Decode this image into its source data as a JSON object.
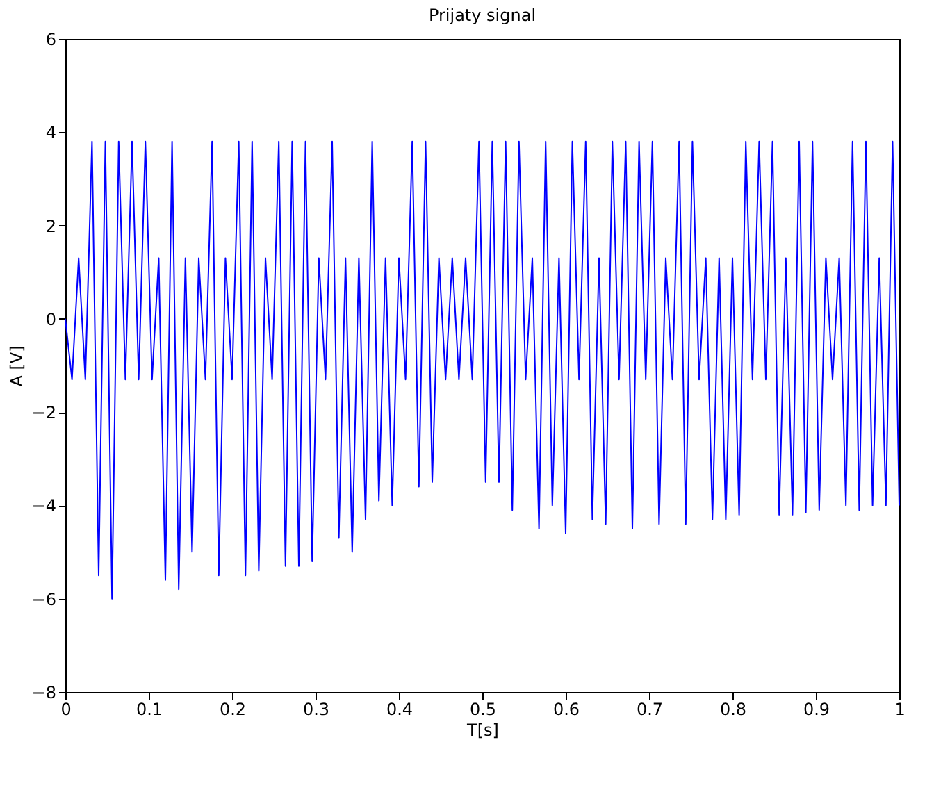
{
  "chart_data": {
    "type": "line",
    "title": "Prijaty signal",
    "xlabel": "T[s]",
    "ylabel": "A [V]",
    "x": [
      0,
      0.008,
      0.016,
      0.024,
      0.032,
      0.04,
      0.048,
      0.056,
      0.064,
      0.072,
      0.08,
      0.088,
      0.096,
      0.104,
      0.112,
      0.12,
      0.128,
      0.136,
      0.144,
      0.152,
      0.16,
      0.168,
      0.176,
      0.184,
      0.192,
      0.2,
      0.208,
      0.216,
      0.224,
      0.232,
      0.24,
      0.248,
      0.256,
      0.264,
      0.272,
      0.28,
      0.288,
      0.296,
      0.304,
      0.312,
      0.32,
      0.328,
      0.336,
      0.344,
      0.352,
      0.36,
      0.368,
      0.376,
      0.384,
      0.392,
      0.4,
      0.408,
      0.416,
      0.424,
      0.432,
      0.44,
      0.448,
      0.456,
      0.464,
      0.472,
      0.48,
      0.488,
      0.496,
      0.504,
      0.512,
      0.52,
      0.528,
      0.536,
      0.544,
      0.552,
      0.56,
      0.568,
      0.576,
      0.584,
      0.592,
      0.6,
      0.608,
      0.616,
      0.624,
      0.632,
      0.64,
      0.648,
      0.656,
      0.664,
      0.672,
      0.68,
      0.688,
      0.696,
      0.704,
      0.712,
      0.72,
      0.728,
      0.736,
      0.744,
      0.752,
      0.76,
      0.768,
      0.776,
      0.784,
      0.792,
      0.8,
      0.808,
      0.816,
      0.824,
      0.832,
      0.84,
      0.848,
      0.856,
      0.864,
      0.872,
      0.88,
      0.888,
      0.896,
      0.904,
      0.912,
      0.92,
      0.928,
      0.936,
      0.944,
      0.952,
      0.96,
      0.968,
      0.976,
      0.984,
      0.992,
      1.0
    ],
    "series": [
      {
        "color": "#0000ff",
        "values": [
          0,
          -1.3,
          1.3,
          -1.3,
          3.8,
          -5.5,
          3.8,
          -6.0,
          3.8,
          -1.3,
          3.8,
          -1.3,
          3.8,
          -1.3,
          1.3,
          -5.6,
          3.8,
          -5.8,
          1.3,
          -5.0,
          1.3,
          -1.3,
          3.8,
          -5.5,
          1.3,
          -1.3,
          3.8,
          -5.5,
          3.8,
          -5.4,
          1.3,
          -1.3,
          3.8,
          -5.3,
          3.8,
          -5.3,
          3.8,
          -5.2,
          1.3,
          -1.3,
          3.8,
          -4.7,
          1.3,
          -5.0,
          1.3,
          -4.3,
          3.8,
          -3.9,
          1.3,
          -4.0,
          1.3,
          -1.3,
          3.8,
          -3.6,
          3.8,
          -3.5,
          1.3,
          -1.3,
          1.3,
          -1.3,
          1.3,
          -1.3,
          3.8,
          -3.5,
          3.8,
          -3.5,
          3.8,
          -4.1,
          3.8,
          -1.3,
          1.3,
          -4.5,
          3.8,
          -4.0,
          1.3,
          -4.6,
          3.8,
          -1.3,
          3.8,
          -4.3,
          1.3,
          -4.4,
          3.8,
          -1.3,
          3.8,
          -4.5,
          3.8,
          -1.3,
          3.8,
          -4.4,
          1.3,
          -1.3,
          3.8,
          -4.4,
          3.8,
          -1.3,
          1.3,
          -4.3,
          1.3,
          -4.3,
          1.3,
          -4.2,
          3.8,
          -1.3,
          3.8,
          -1.3,
          3.8,
          -4.2,
          1.3,
          -4.2,
          3.8,
          -4.15,
          3.8,
          -4.1,
          1.3,
          -1.3,
          1.3,
          -4.0,
          3.8,
          -4.1,
          3.8,
          -4.0,
          1.3,
          -4.0,
          3.8,
          -4.0
        ]
      }
    ],
    "xlim": [
      0,
      1
    ],
    "xticks": [
      0,
      0.1,
      0.2,
      0.3,
      0.4,
      0.5,
      0.6,
      0.7,
      0.8,
      0.9,
      1
    ],
    "ylim": [
      -8,
      6
    ],
    "yticks": [
      -8,
      -6,
      -4,
      -2,
      0,
      2,
      4,
      6
    ],
    "grid": false,
    "legend": false,
    "marker": "none",
    "line_style": "solid"
  }
}
